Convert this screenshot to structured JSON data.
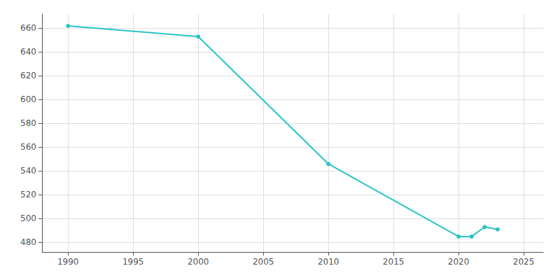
{
  "chart_data": {
    "type": "line",
    "x": [
      1990,
      2000,
      2010,
      2020,
      2021,
      2022,
      2023
    ],
    "values": [
      662,
      653,
      546,
      485,
      485,
      493,
      491
    ],
    "color": "#2ac4c4",
    "marker": "circle",
    "xlim": [
      1988,
      2026.5
    ],
    "ylim": [
      472,
      672
    ],
    "xticks": [
      1990,
      1995,
      2000,
      2005,
      2010,
      2015,
      2020,
      2025
    ],
    "yticks": [
      480,
      500,
      520,
      540,
      560,
      580,
      600,
      620,
      640,
      660
    ],
    "grid": true
  }
}
